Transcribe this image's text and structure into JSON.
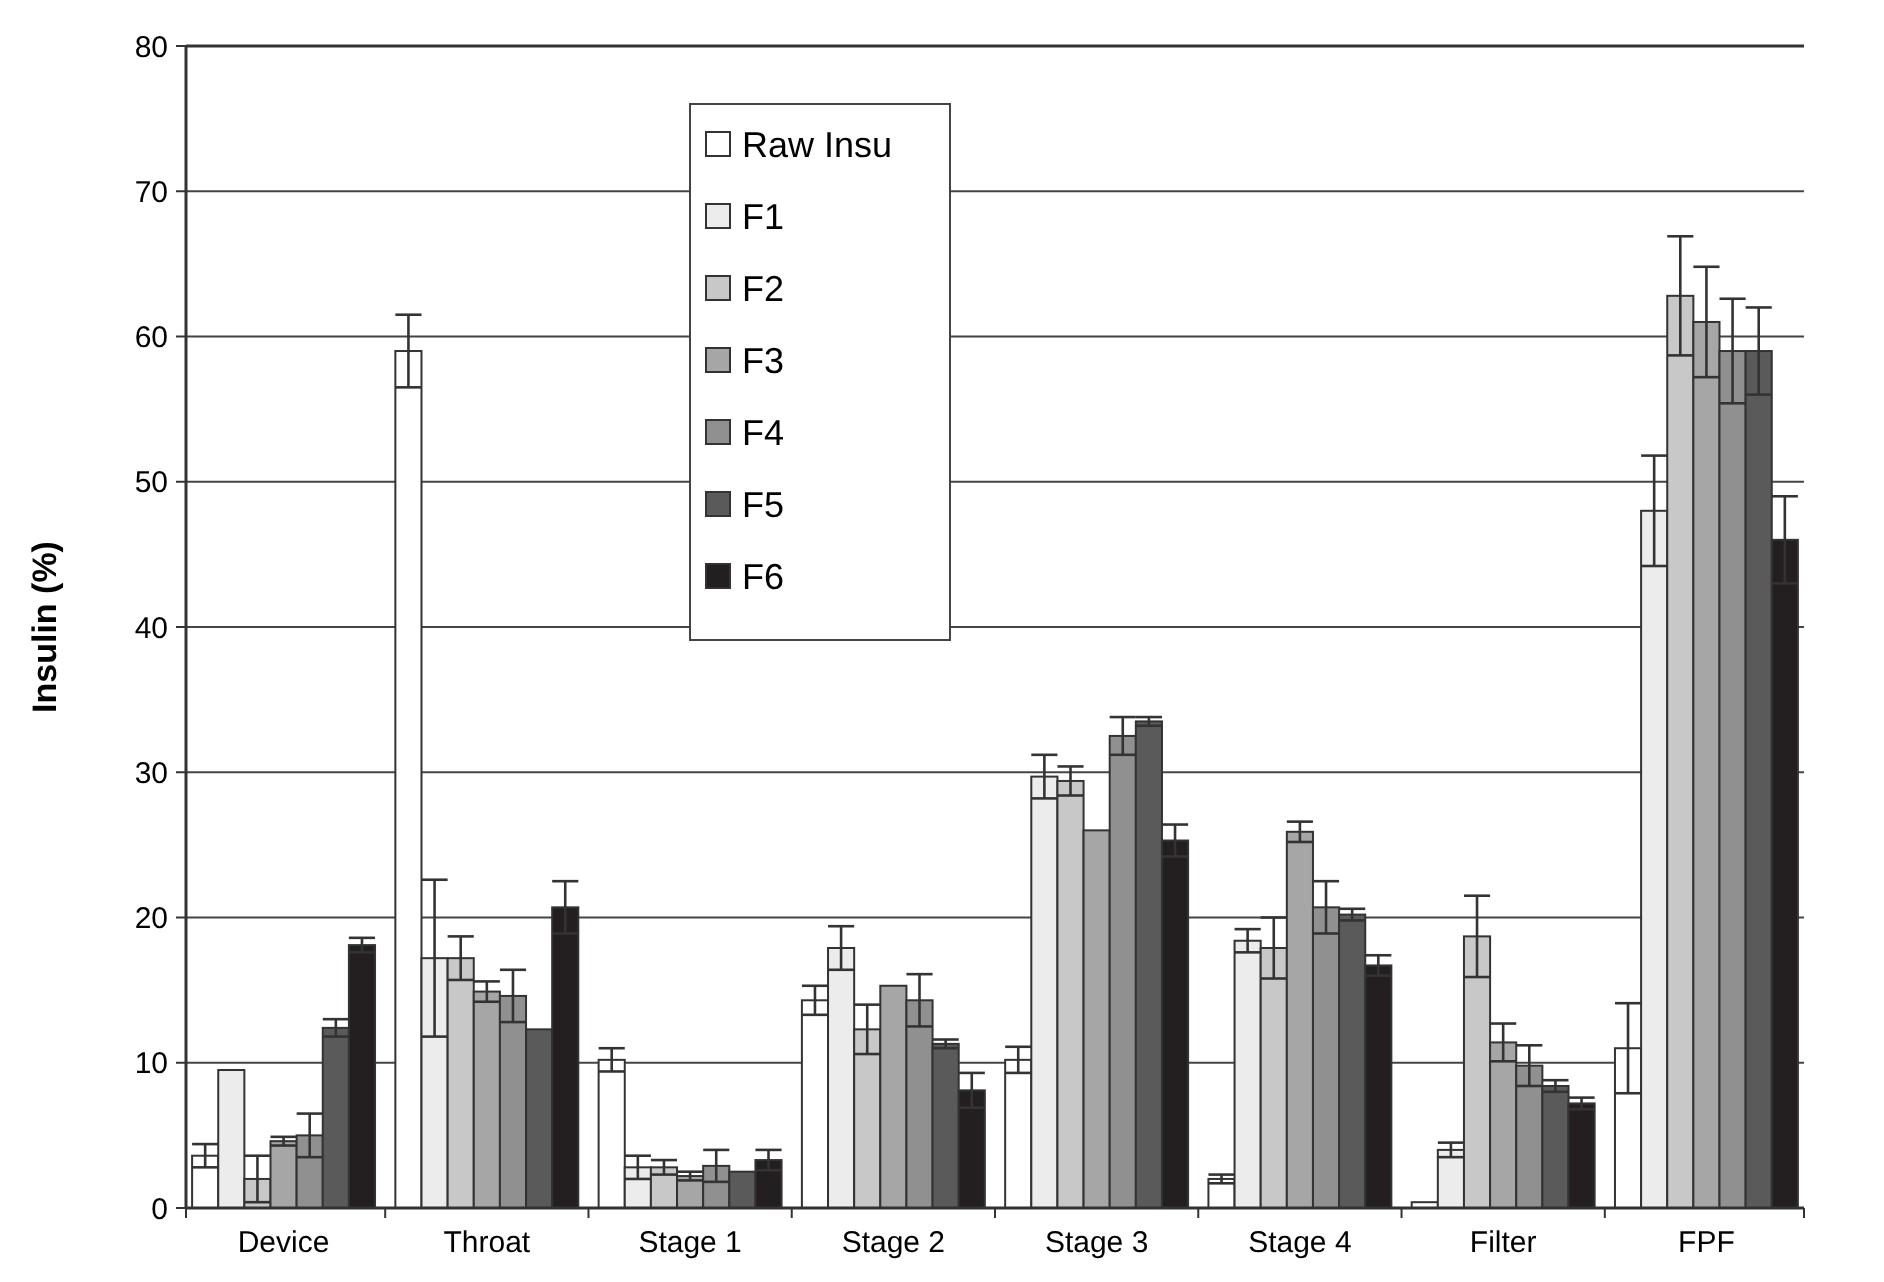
{
  "chart_data": {
    "type": "bar",
    "ylabel": "Insulin (%)",
    "categories": [
      "Device",
      "Throat",
      "Stage 1",
      "Stage 2",
      "Stage 3",
      "Stage 4",
      "Filter",
      "FPF"
    ],
    "ylim": [
      0,
      80
    ],
    "yticks": [
      0,
      10,
      20,
      30,
      40,
      50,
      60,
      70,
      80
    ],
    "grid": "y",
    "legend": "top left",
    "series": [
      {
        "name": "Raw Insu",
        "color": "#ffffff",
        "values": [
          3.6,
          59,
          10.2,
          14.3,
          10.2,
          2.0,
          0.4,
          11.0
        ],
        "errors": [
          0.8,
          2.5,
          0.8,
          1.0,
          0.9,
          0.3,
          null,
          3.1
        ]
      },
      {
        "name": "F1",
        "color": "#ececec",
        "values": [
          9.5,
          17.2,
          2.8,
          17.9,
          29.7,
          18.4,
          4.0,
          48
        ],
        "errors": [
          null,
          5.4,
          0.8,
          1.5,
          1.5,
          0.8,
          0.5,
          3.8
        ]
      },
      {
        "name": "F2",
        "color": "#c8c8c8",
        "values": [
          2.0,
          17.2,
          2.8,
          12.3,
          29.4,
          17.9,
          18.7,
          62.8
        ],
        "errors": [
          1.6,
          1.5,
          0.5,
          1.7,
          1.0,
          2.1,
          2.8,
          4.1
        ]
      },
      {
        "name": "F3",
        "color": "#a6a6a6",
        "values": [
          4.6,
          14.9,
          2.2,
          15.3,
          26.0,
          25.9,
          11.4,
          61
        ],
        "errors": [
          0.3,
          0.7,
          0.3,
          null,
          null,
          0.7,
          1.3,
          3.8
        ]
      },
      {
        "name": "F4",
        "color": "#909090",
        "values": [
          5.0,
          14.6,
          2.9,
          14.3,
          32.5,
          20.7,
          9.8,
          59
        ],
        "errors": [
          1.5,
          1.8,
          1.1,
          1.8,
          1.3,
          1.8,
          1.4,
          3.6
        ]
      },
      {
        "name": "F5",
        "color": "#5a5a5a",
        "values": [
          12.4,
          12.3,
          2.5,
          11.3,
          33.5,
          20.2,
          8.4,
          59
        ],
        "errors": [
          0.6,
          null,
          null,
          0.3,
          0.3,
          0.4,
          0.4,
          3.0
        ]
      },
      {
        "name": "F6",
        "color": "#231f20",
        "values": [
          18.1,
          20.7,
          3.3,
          8.1,
          25.3,
          16.7,
          7.2,
          46
        ],
        "errors": [
          0.5,
          1.8,
          0.7,
          1.2,
          1.1,
          0.7,
          0.4,
          3.0
        ]
      }
    ]
  }
}
